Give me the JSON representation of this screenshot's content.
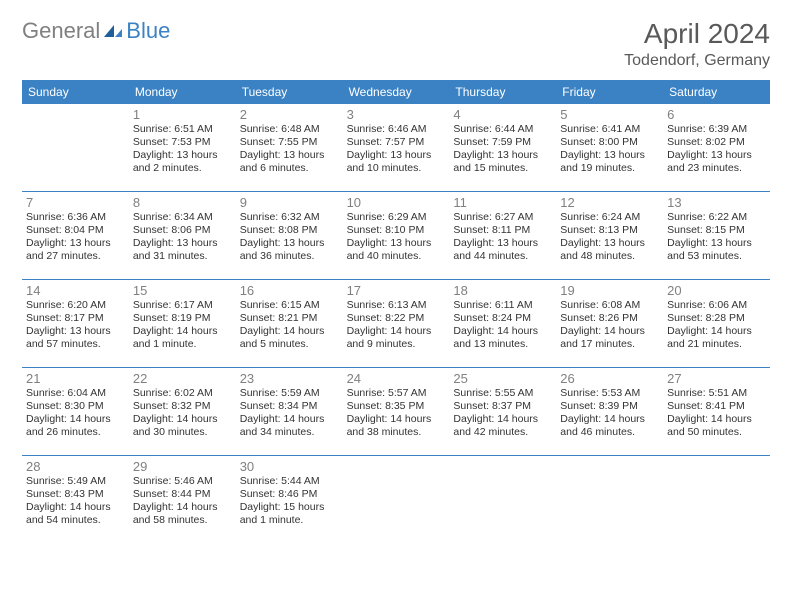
{
  "brand": {
    "part1": "General",
    "part2": "Blue"
  },
  "title": "April 2024",
  "location": "Todendorf, Germany",
  "header_color": "#3b82c4",
  "border_color": "#3b82c4",
  "day_names": [
    "Sunday",
    "Monday",
    "Tuesday",
    "Wednesday",
    "Thursday",
    "Friday",
    "Saturday"
  ],
  "days": [
    {
      "n": "",
      "sr": "",
      "ss": "",
      "dl1": "",
      "dl2": ""
    },
    {
      "n": "1",
      "sr": "Sunrise: 6:51 AM",
      "ss": "Sunset: 7:53 PM",
      "dl1": "Daylight: 13 hours",
      "dl2": "and 2 minutes."
    },
    {
      "n": "2",
      "sr": "Sunrise: 6:48 AM",
      "ss": "Sunset: 7:55 PM",
      "dl1": "Daylight: 13 hours",
      "dl2": "and 6 minutes."
    },
    {
      "n": "3",
      "sr": "Sunrise: 6:46 AM",
      "ss": "Sunset: 7:57 PM",
      "dl1": "Daylight: 13 hours",
      "dl2": "and 10 minutes."
    },
    {
      "n": "4",
      "sr": "Sunrise: 6:44 AM",
      "ss": "Sunset: 7:59 PM",
      "dl1": "Daylight: 13 hours",
      "dl2": "and 15 minutes."
    },
    {
      "n": "5",
      "sr": "Sunrise: 6:41 AM",
      "ss": "Sunset: 8:00 PM",
      "dl1": "Daylight: 13 hours",
      "dl2": "and 19 minutes."
    },
    {
      "n": "6",
      "sr": "Sunrise: 6:39 AM",
      "ss": "Sunset: 8:02 PM",
      "dl1": "Daylight: 13 hours",
      "dl2": "and 23 minutes."
    },
    {
      "n": "7",
      "sr": "Sunrise: 6:36 AM",
      "ss": "Sunset: 8:04 PM",
      "dl1": "Daylight: 13 hours",
      "dl2": "and 27 minutes."
    },
    {
      "n": "8",
      "sr": "Sunrise: 6:34 AM",
      "ss": "Sunset: 8:06 PM",
      "dl1": "Daylight: 13 hours",
      "dl2": "and 31 minutes."
    },
    {
      "n": "9",
      "sr": "Sunrise: 6:32 AM",
      "ss": "Sunset: 8:08 PM",
      "dl1": "Daylight: 13 hours",
      "dl2": "and 36 minutes."
    },
    {
      "n": "10",
      "sr": "Sunrise: 6:29 AM",
      "ss": "Sunset: 8:10 PM",
      "dl1": "Daylight: 13 hours",
      "dl2": "and 40 minutes."
    },
    {
      "n": "11",
      "sr": "Sunrise: 6:27 AM",
      "ss": "Sunset: 8:11 PM",
      "dl1": "Daylight: 13 hours",
      "dl2": "and 44 minutes."
    },
    {
      "n": "12",
      "sr": "Sunrise: 6:24 AM",
      "ss": "Sunset: 8:13 PM",
      "dl1": "Daylight: 13 hours",
      "dl2": "and 48 minutes."
    },
    {
      "n": "13",
      "sr": "Sunrise: 6:22 AM",
      "ss": "Sunset: 8:15 PM",
      "dl1": "Daylight: 13 hours",
      "dl2": "and 53 minutes."
    },
    {
      "n": "14",
      "sr": "Sunrise: 6:20 AM",
      "ss": "Sunset: 8:17 PM",
      "dl1": "Daylight: 13 hours",
      "dl2": "and 57 minutes."
    },
    {
      "n": "15",
      "sr": "Sunrise: 6:17 AM",
      "ss": "Sunset: 8:19 PM",
      "dl1": "Daylight: 14 hours",
      "dl2": "and 1 minute."
    },
    {
      "n": "16",
      "sr": "Sunrise: 6:15 AM",
      "ss": "Sunset: 8:21 PM",
      "dl1": "Daylight: 14 hours",
      "dl2": "and 5 minutes."
    },
    {
      "n": "17",
      "sr": "Sunrise: 6:13 AM",
      "ss": "Sunset: 8:22 PM",
      "dl1": "Daylight: 14 hours",
      "dl2": "and 9 minutes."
    },
    {
      "n": "18",
      "sr": "Sunrise: 6:11 AM",
      "ss": "Sunset: 8:24 PM",
      "dl1": "Daylight: 14 hours",
      "dl2": "and 13 minutes."
    },
    {
      "n": "19",
      "sr": "Sunrise: 6:08 AM",
      "ss": "Sunset: 8:26 PM",
      "dl1": "Daylight: 14 hours",
      "dl2": "and 17 minutes."
    },
    {
      "n": "20",
      "sr": "Sunrise: 6:06 AM",
      "ss": "Sunset: 8:28 PM",
      "dl1": "Daylight: 14 hours",
      "dl2": "and 21 minutes."
    },
    {
      "n": "21",
      "sr": "Sunrise: 6:04 AM",
      "ss": "Sunset: 8:30 PM",
      "dl1": "Daylight: 14 hours",
      "dl2": "and 26 minutes."
    },
    {
      "n": "22",
      "sr": "Sunrise: 6:02 AM",
      "ss": "Sunset: 8:32 PM",
      "dl1": "Daylight: 14 hours",
      "dl2": "and 30 minutes."
    },
    {
      "n": "23",
      "sr": "Sunrise: 5:59 AM",
      "ss": "Sunset: 8:34 PM",
      "dl1": "Daylight: 14 hours",
      "dl2": "and 34 minutes."
    },
    {
      "n": "24",
      "sr": "Sunrise: 5:57 AM",
      "ss": "Sunset: 8:35 PM",
      "dl1": "Daylight: 14 hours",
      "dl2": "and 38 minutes."
    },
    {
      "n": "25",
      "sr": "Sunrise: 5:55 AM",
      "ss": "Sunset: 8:37 PM",
      "dl1": "Daylight: 14 hours",
      "dl2": "and 42 minutes."
    },
    {
      "n": "26",
      "sr": "Sunrise: 5:53 AM",
      "ss": "Sunset: 8:39 PM",
      "dl1": "Daylight: 14 hours",
      "dl2": "and 46 minutes."
    },
    {
      "n": "27",
      "sr": "Sunrise: 5:51 AM",
      "ss": "Sunset: 8:41 PM",
      "dl1": "Daylight: 14 hours",
      "dl2": "and 50 minutes."
    },
    {
      "n": "28",
      "sr": "Sunrise: 5:49 AM",
      "ss": "Sunset: 8:43 PM",
      "dl1": "Daylight: 14 hours",
      "dl2": "and 54 minutes."
    },
    {
      "n": "29",
      "sr": "Sunrise: 5:46 AM",
      "ss": "Sunset: 8:44 PM",
      "dl1": "Daylight: 14 hours",
      "dl2": "and 58 minutes."
    },
    {
      "n": "30",
      "sr": "Sunrise: 5:44 AM",
      "ss": "Sunset: 8:46 PM",
      "dl1": "Daylight: 15 hours",
      "dl2": "and 1 minute."
    },
    {
      "n": "",
      "sr": "",
      "ss": "",
      "dl1": "",
      "dl2": ""
    },
    {
      "n": "",
      "sr": "",
      "ss": "",
      "dl1": "",
      "dl2": ""
    },
    {
      "n": "",
      "sr": "",
      "ss": "",
      "dl1": "",
      "dl2": ""
    },
    {
      "n": "",
      "sr": "",
      "ss": "",
      "dl1": "",
      "dl2": ""
    }
  ]
}
